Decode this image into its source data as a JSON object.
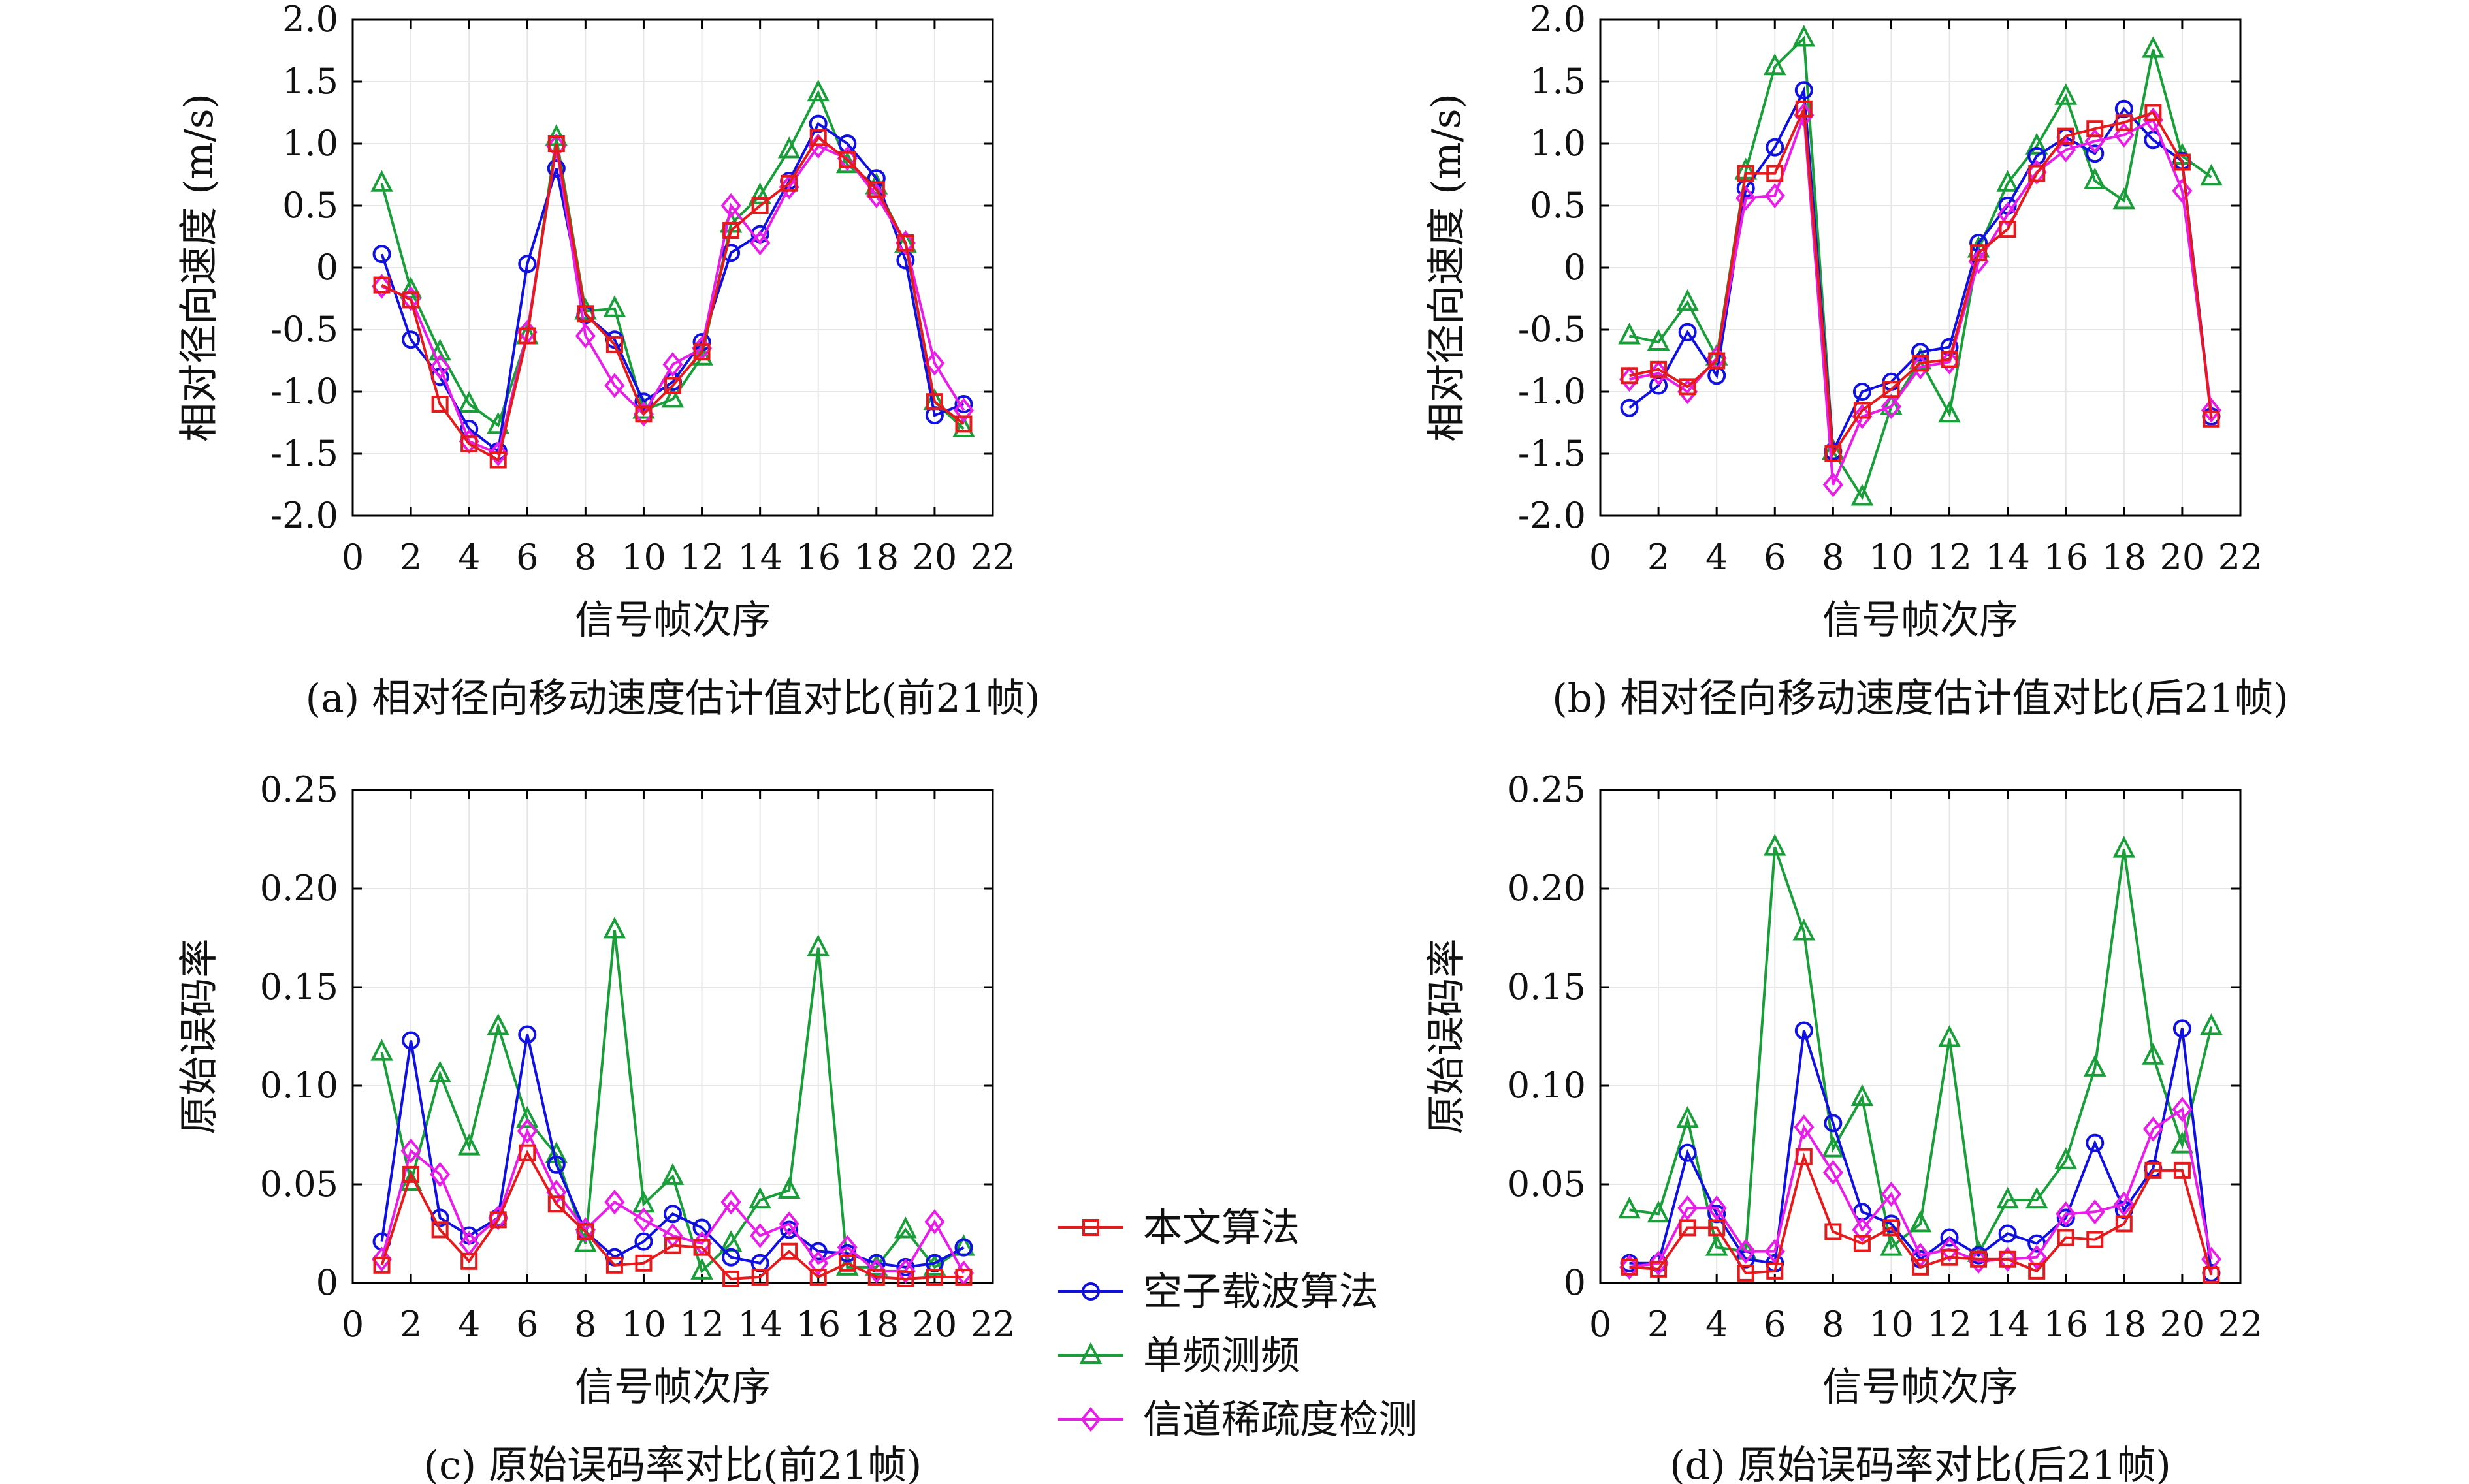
{
  "colors": {
    "ours": "#e41a1c",
    "subcarrier": "#1010e0",
    "single": "#1a9e3a",
    "sparsity": "#e81ee8",
    "grid": "#e6e6e6",
    "axis": "#000000"
  },
  "legend": {
    "entries": [
      {
        "name": "本文算法",
        "series": "ours",
        "marker": "square"
      },
      {
        "name": "空子载波算法",
        "series": "subcarrier",
        "marker": "circle"
      },
      {
        "name": "单频测频",
        "series": "single",
        "marker": "triangle"
      },
      {
        "name": "信道稀疏度检测",
        "series": "sparsity",
        "marker": "diamond"
      }
    ]
  },
  "chart_data": [
    {
      "type": "line",
      "caption": "(a) 相对径向移动速度估计值对比(前21帧)",
      "xlabel": "信号帧次序",
      "ylabel": "相对径向速度 (m/s)",
      "xlim": [
        0,
        22
      ],
      "ylim": [
        -2,
        2
      ],
      "xticks": [
        "0",
        "2",
        "4",
        "6",
        "8",
        "10",
        "12",
        "14",
        "16",
        "18",
        "20",
        "22"
      ],
      "yticks": [
        "-2.0",
        "-1.5",
        "-1.0",
        "-0.5",
        "0",
        "0.5",
        "1.0",
        "1.5",
        "2.0"
      ],
      "ytick_values": [
        -2,
        -1.5,
        -1,
        -0.5,
        0,
        0.5,
        1,
        1.5,
        2
      ],
      "grid": true,
      "x": [
        1,
        2,
        3,
        4,
        5,
        6,
        7,
        8,
        9,
        10,
        11,
        12,
        13,
        14,
        15,
        16,
        17,
        18,
        19,
        20,
        21
      ],
      "series": [
        {
          "name": "单频测频",
          "key": "single",
          "marker": "triangle",
          "values": [
            0.68,
            -0.18,
            -0.68,
            -1.1,
            -1.27,
            -0.55,
            1.05,
            -0.35,
            -0.33,
            -1.15,
            -1.06,
            -0.72,
            0.35,
            0.58,
            0.95,
            1.41,
            0.83,
            0.66,
            0.19,
            -1.08,
            -1.3
          ]
        },
        {
          "name": "空子载波算法",
          "key": "subcarrier",
          "marker": "circle",
          "values": [
            0.11,
            -0.58,
            -0.88,
            -1.3,
            -1.48,
            0.03,
            0.8,
            -0.38,
            -0.58,
            -1.08,
            -0.92,
            -0.6,
            0.12,
            0.27,
            0.7,
            1.16,
            1.0,
            0.72,
            0.06,
            -1.19,
            -1.1
          ]
        },
        {
          "name": "信道稀疏度检测",
          "key": "sparsity",
          "marker": "diamond",
          "values": [
            -0.15,
            -0.25,
            -0.8,
            -1.4,
            -1.5,
            -0.52,
            0.98,
            -0.55,
            -0.95,
            -1.18,
            -0.78,
            -0.65,
            0.5,
            0.2,
            0.65,
            0.98,
            0.88,
            0.58,
            0.2,
            -0.77,
            -1.15
          ]
        },
        {
          "name": "本文算法",
          "key": "ours",
          "marker": "square",
          "values": [
            -0.14,
            -0.26,
            -1.1,
            -1.42,
            -1.55,
            -0.55,
            1.0,
            -0.37,
            -0.62,
            -1.18,
            -0.95,
            -0.68,
            0.3,
            0.5,
            0.68,
            1.05,
            0.87,
            0.63,
            0.2,
            -1.08,
            -1.26
          ]
        }
      ]
    },
    {
      "type": "line",
      "caption": "(b) 相对径向移动速度估计值对比(后21帧)",
      "xlabel": "信号帧次序",
      "ylabel": "相对径向速度 (m/s)",
      "xlim": [
        0,
        22
      ],
      "ylim": [
        -2,
        2
      ],
      "xticks": [
        "0",
        "2",
        "4",
        "6",
        "8",
        "10",
        "12",
        "14",
        "16",
        "18",
        "20",
        "22"
      ],
      "yticks": [
        "-2.0",
        "-1.5",
        "-1.0",
        "-0.5",
        "0",
        "0.5",
        "1.0",
        "1.5",
        "2.0"
      ],
      "ytick_values": [
        -2,
        -1.5,
        -1,
        -0.5,
        0,
        0.5,
        1,
        1.5,
        2
      ],
      "grid": true,
      "x": [
        1,
        2,
        3,
        4,
        5,
        6,
        7,
        8,
        9,
        10,
        11,
        12,
        13,
        14,
        15,
        16,
        17,
        18,
        19,
        20,
        21
      ],
      "series": [
        {
          "name": "单频测频",
          "key": "single",
          "marker": "triangle",
          "values": [
            -0.55,
            -0.6,
            -0.28,
            -0.72,
            0.78,
            1.62,
            1.85,
            -1.48,
            -1.85,
            -1.12,
            -0.75,
            -1.18,
            0.15,
            0.68,
            0.98,
            1.38,
            0.7,
            0.54,
            1.76,
            0.9,
            0.73
          ]
        },
        {
          "name": "空子载波算法",
          "key": "subcarrier",
          "marker": "circle",
          "values": [
            -1.13,
            -0.95,
            -0.52,
            -0.87,
            0.64,
            0.97,
            1.43,
            -1.48,
            -1.0,
            -0.92,
            -0.68,
            -0.64,
            0.2,
            0.5,
            0.9,
            1.05,
            0.92,
            1.28,
            1.03,
            0.86,
            -1.2
          ]
        },
        {
          "name": "信道稀疏度检测",
          "key": "sparsity",
          "marker": "diamond",
          "values": [
            -0.9,
            -0.85,
            -1.0,
            -0.73,
            0.56,
            0.58,
            1.23,
            -1.75,
            -1.2,
            -1.12,
            -0.8,
            -0.76,
            0.05,
            0.43,
            0.77,
            0.95,
            1.02,
            1.07,
            1.19,
            0.62,
            -1.15
          ]
        },
        {
          "name": "本文算法",
          "key": "ours",
          "marker": "square",
          "values": [
            -0.87,
            -0.82,
            -0.96,
            -0.75,
            0.76,
            0.76,
            1.28,
            -1.5,
            -1.15,
            -0.98,
            -0.77,
            -0.74,
            0.12,
            0.31,
            0.76,
            1.06,
            1.12,
            1.17,
            1.25,
            0.85,
            -1.22
          ]
        }
      ]
    },
    {
      "type": "line",
      "caption": "(c) 原始误码率对比(前21帧)",
      "xlabel": "信号帧次序",
      "ylabel": "原始误码率",
      "xlim": [
        0,
        22
      ],
      "ylim": [
        0,
        0.25
      ],
      "xticks": [
        "0",
        "2",
        "4",
        "6",
        "8",
        "10",
        "12",
        "14",
        "16",
        "18",
        "20",
        "22"
      ],
      "yticks": [
        "0",
        "0.05",
        "0.10",
        "0.15",
        "0.20",
        "0.25"
      ],
      "ytick_values": [
        0,
        0.05,
        0.1,
        0.15,
        0.2,
        0.25
      ],
      "grid": true,
      "x": [
        1,
        2,
        3,
        4,
        5,
        6,
        7,
        8,
        9,
        10,
        11,
        12,
        13,
        14,
        15,
        16,
        17,
        18,
        19,
        20,
        21
      ],
      "series": [
        {
          "name": "单频测频",
          "key": "single",
          "marker": "triangle",
          "values": [
            0.117,
            0.051,
            0.106,
            0.069,
            0.13,
            0.083,
            0.065,
            0.02,
            0.179,
            0.04,
            0.054,
            0.006,
            0.02,
            0.042,
            0.047,
            0.17,
            0.008,
            0.008,
            0.027,
            0.008,
            0.018
          ]
        },
        {
          "name": "空子载波算法",
          "key": "subcarrier",
          "marker": "circle",
          "values": [
            0.021,
            0.123,
            0.033,
            0.024,
            0.033,
            0.126,
            0.06,
            0.026,
            0.013,
            0.021,
            0.035,
            0.028,
            0.013,
            0.01,
            0.027,
            0.016,
            0.015,
            0.01,
            0.008,
            0.01,
            0.018
          ]
        },
        {
          "name": "信道稀疏度检测",
          "key": "sparsity",
          "marker": "diamond",
          "values": [
            0.012,
            0.067,
            0.055,
            0.02,
            0.033,
            0.077,
            0.046,
            0.027,
            0.041,
            0.032,
            0.024,
            0.02,
            0.041,
            0.024,
            0.03,
            0.01,
            0.018,
            0.006,
            0.006,
            0.031,
            0.005
          ]
        },
        {
          "name": "本文算法",
          "key": "ours",
          "marker": "square",
          "values": [
            0.009,
            0.055,
            0.027,
            0.011,
            0.032,
            0.066,
            0.04,
            0.026,
            0.009,
            0.01,
            0.019,
            0.018,
            0.002,
            0.003,
            0.016,
            0.003,
            0.01,
            0.003,
            0.002,
            0.003,
            0.003
          ]
        }
      ]
    },
    {
      "type": "line",
      "caption": "(d) 原始误码率对比(后21帧)",
      "xlabel": "信号帧次序",
      "ylabel": "原始误码率",
      "xlim": [
        0,
        22
      ],
      "ylim": [
        0,
        0.25
      ],
      "xticks": [
        "0",
        "2",
        "4",
        "6",
        "8",
        "10",
        "12",
        "14",
        "16",
        "18",
        "20",
        "22"
      ],
      "yticks": [
        "0",
        "0.05",
        "0.10",
        "0.15",
        "0.20",
        "0.25"
      ],
      "ytick_values": [
        0,
        0.05,
        0.1,
        0.15,
        0.2,
        0.25
      ],
      "grid": true,
      "x": [
        1,
        2,
        3,
        4,
        5,
        6,
        7,
        8,
        9,
        10,
        11,
        12,
        13,
        14,
        15,
        16,
        17,
        18,
        19,
        20,
        21
      ],
      "series": [
        {
          "name": "单频测频",
          "key": "single",
          "marker": "triangle",
          "values": [
            0.037,
            0.035,
            0.083,
            0.018,
            0.016,
            0.221,
            0.178,
            0.068,
            0.094,
            0.018,
            0.03,
            0.124,
            0.015,
            0.042,
            0.042,
            0.062,
            0.109,
            0.22,
            0.115,
            0.07,
            0.13
          ]
        },
        {
          "name": "空子载波算法",
          "key": "subcarrier",
          "marker": "circle",
          "values": [
            0.01,
            0.01,
            0.066,
            0.035,
            0.012,
            0.01,
            0.128,
            0.081,
            0.036,
            0.03,
            0.012,
            0.023,
            0.014,
            0.025,
            0.02,
            0.033,
            0.071,
            0.037,
            0.058,
            0.129,
            0.005
          ]
        },
        {
          "name": "信道稀疏度检测",
          "key": "sparsity",
          "marker": "diamond",
          "values": [
            0.008,
            0.01,
            0.038,
            0.038,
            0.016,
            0.016,
            0.079,
            0.056,
            0.027,
            0.045,
            0.014,
            0.017,
            0.011,
            0.012,
            0.013,
            0.035,
            0.036,
            0.04,
            0.078,
            0.088,
            0.012
          ]
        },
        {
          "name": "本文算法",
          "key": "ours",
          "marker": "square",
          "values": [
            0.008,
            0.007,
            0.028,
            0.028,
            0.005,
            0.006,
            0.064,
            0.026,
            0.02,
            0.028,
            0.008,
            0.013,
            0.012,
            0.012,
            0.006,
            0.023,
            0.022,
            0.03,
            0.057,
            0.057,
            0.004
          ]
        }
      ]
    }
  ]
}
